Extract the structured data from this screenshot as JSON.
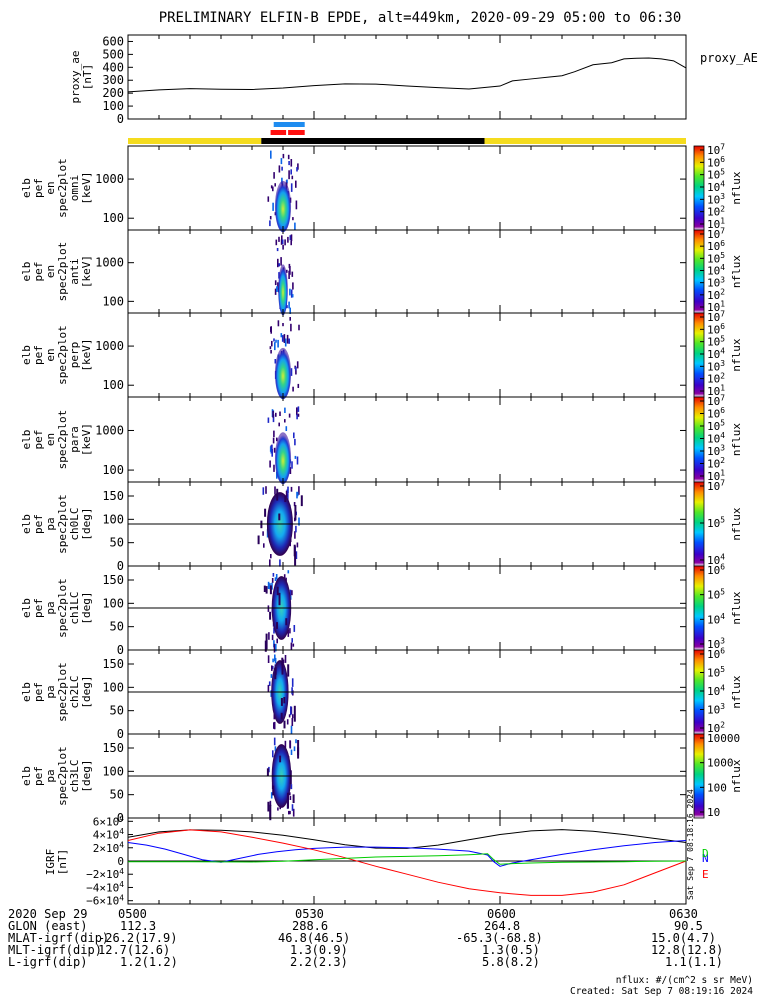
{
  "title": "PRELIMINARY ELFIN-B EPDE, alt=449km, 2020-09-29 05:00 to 06:30",
  "chart_data": [
    {
      "type": "line",
      "panel": "proxy_ae",
      "ylabel": [
        "proxy_ae",
        "[nT]"
      ],
      "legend": "proxy_AE",
      "yticks": [
        "0",
        "100",
        "200",
        "300",
        "400",
        "500",
        "600"
      ],
      "ylim": [
        0,
        650
      ],
      "x_minutes": [
        0,
        5,
        10,
        15,
        20,
        25,
        30,
        35,
        40,
        45,
        50,
        55,
        60,
        62,
        65,
        68,
        70,
        72,
        75,
        78,
        80,
        82,
        84,
        86,
        88,
        90
      ],
      "values": [
        210,
        225,
        235,
        230,
        228,
        240,
        258,
        272,
        270,
        255,
        243,
        232,
        255,
        295,
        310,
        325,
        335,
        365,
        420,
        435,
        465,
        470,
        472,
        465,
        450,
        395
      ]
    },
    {
      "type": "heatmap",
      "panel": "omni",
      "ylabel": [
        "elb",
        "pef",
        "en",
        "spec2plot",
        "omni",
        "[keV]"
      ],
      "yticks": [
        "100",
        "1000"
      ],
      "ylog": true,
      "colorbar_ticks": [
        "10^7",
        "10^6",
        "10^5",
        "10^4",
        "10^3",
        "10^2",
        "10^1"
      ],
      "colorbar_label": "nflux",
      "x_active_minutes": [
        22.5,
        27.5
      ]
    },
    {
      "type": "heatmap",
      "panel": "anti",
      "ylabel": [
        "elb",
        "pef",
        "en",
        "spec2plot",
        "anti",
        "[keV]"
      ],
      "yticks": [
        "100",
        "1000"
      ],
      "ylog": true,
      "colorbar_ticks": [
        "10^7",
        "10^6",
        "10^5",
        "10^4",
        "10^3",
        "10^2",
        "10^1"
      ],
      "colorbar_label": "nflux",
      "x_active_minutes": [
        23.5,
        26.5
      ]
    },
    {
      "type": "heatmap",
      "panel": "perp",
      "ylabel": [
        "elb",
        "pef",
        "en",
        "spec2plot",
        "perp",
        "[keV]"
      ],
      "yticks": [
        "100",
        "1000"
      ],
      "ylog": true,
      "colorbar_ticks": [
        "10^7",
        "10^6",
        "10^5",
        "10^4",
        "10^3",
        "10^2",
        "10^1"
      ],
      "colorbar_label": "nflux",
      "x_active_minutes": [
        22.5,
        27.5
      ]
    },
    {
      "type": "heatmap",
      "panel": "para",
      "ylabel": [
        "elb",
        "pef",
        "en",
        "spec2plot",
        "para",
        "[keV]"
      ],
      "yticks": [
        "100",
        "1000"
      ],
      "ylog": true,
      "colorbar_ticks": [
        "10^7",
        "10^6",
        "10^5",
        "10^4",
        "10^3",
        "10^2",
        "10^1"
      ],
      "colorbar_label": "nflux",
      "x_active_minutes": [
        22.5,
        27.5
      ]
    },
    {
      "type": "heatmap",
      "panel": "ch0LC",
      "ylabel": [
        "elb",
        "pef",
        "pa",
        "spec2plot",
        "ch0LC",
        "[deg]"
      ],
      "yticks": [
        "0",
        "50",
        "100",
        "150"
      ],
      "ylim": [
        0,
        180
      ],
      "hline": 90,
      "colorbar_ticks": [
        "10^7",
        "10^5",
        "10^4"
      ],
      "colorbar_label": "nflux",
      "x_active_minutes": [
        21.5,
        27.5
      ]
    },
    {
      "type": "heatmap",
      "panel": "ch1LC",
      "ylabel": [
        "elb",
        "pef",
        "pa",
        "spec2plot",
        "ch1LC",
        "[deg]"
      ],
      "yticks": [
        "0",
        "50",
        "100",
        "150"
      ],
      "ylim": [
        0,
        180
      ],
      "hline": 90,
      "colorbar_ticks": [
        "10^6",
        "10^5",
        "10^4",
        "10^3"
      ],
      "colorbar_label": "nflux",
      "x_active_minutes": [
        22.5,
        27.0
      ]
    },
    {
      "type": "heatmap",
      "panel": "ch2LC",
      "ylabel": [
        "elb",
        "pef",
        "pa",
        "spec2plot",
        "ch2LC",
        "[deg]"
      ],
      "yticks": [
        "0",
        "50",
        "100",
        "150"
      ],
      "ylim": [
        0,
        180
      ],
      "hline": 90,
      "colorbar_ticks": [
        "10^6",
        "10^5",
        "10^4",
        "10^3",
        "10^2"
      ],
      "colorbar_label": "nflux",
      "x_active_minutes": [
        22.5,
        26.5
      ]
    },
    {
      "type": "heatmap",
      "panel": "ch3LC",
      "ylabel": [
        "elb",
        "pef",
        "pa",
        "spec2plot",
        "ch3LC",
        "[deg]"
      ],
      "yticks": [
        "0",
        "50",
        "100",
        "150"
      ],
      "ylim": [
        0,
        180
      ],
      "hline": 90,
      "colorbar_ticks": [
        "10000",
        "1000",
        "100",
        "10"
      ],
      "colorbar_label": "nflux",
      "x_active_minutes": [
        22.5,
        27.0
      ]
    },
    {
      "type": "line",
      "panel": "GRF",
      "ylabel": [
        "IGRF",
        "[nT]"
      ],
      "yticks": [
        "6×10^4",
        "4×10^4",
        "2×10^4",
        "0",
        "−2×10^4",
        "−4×10^4",
        "−6×10^4"
      ],
      "ylim": [
        -65000,
        65000
      ],
      "legend": [
        {
          "name": "N",
          "color": "#0000ff"
        },
        {
          "name": "E",
          "color": "#ff0000"
        },
        {
          "name": "D",
          "color": "#00cc00"
        }
      ],
      "series": [
        {
          "name": "total",
          "color": "#000000",
          "x_minutes": [
            0,
            5,
            10,
            15,
            20,
            25,
            30,
            35,
            40,
            45,
            50,
            55,
            60,
            65,
            70,
            75,
            80,
            85,
            90
          ],
          "values": [
            36000,
            44000,
            47000,
            46500,
            44000,
            39000,
            32000,
            24500,
            19500,
            19000,
            24000,
            32000,
            40000,
            45500,
            47500,
            45000,
            40000,
            34000,
            28000
          ]
        },
        {
          "name": "N",
          "color": "#0000ff",
          "x_minutes": [
            0,
            3,
            6,
            9,
            12,
            15,
            18,
            21,
            24,
            27,
            30,
            35,
            40,
            45,
            50,
            55,
            58,
            59,
            60,
            62,
            65,
            70,
            75,
            80,
            85,
            90
          ],
          "values": [
            28000,
            24000,
            18000,
            10000,
            2000,
            -2000,
            4000,
            10000,
            14000,
            17000,
            19000,
            21000,
            21000,
            20000,
            18000,
            15000,
            9000,
            -1000,
            -8000,
            -3000,
            2000,
            10000,
            17000,
            23000,
            28000,
            31000
          ]
        },
        {
          "name": "E",
          "color": "#ff0000",
          "x_minutes": [
            0,
            5,
            10,
            15,
            20,
            25,
            30,
            35,
            40,
            45,
            50,
            55,
            60,
            65,
            70,
            75,
            80,
            85,
            90
          ],
          "values": [
            31000,
            42000,
            47000,
            44000,
            36000,
            27000,
            17000,
            5000,
            -8000,
            -20000,
            -32000,
            -42000,
            -48000,
            -52000,
            -52000,
            -47000,
            -36000,
            -18000,
            0
          ]
        },
        {
          "name": "D",
          "color": "#00cc00",
          "x_minutes": [
            0,
            10,
            20,
            25,
            30,
            35,
            40,
            45,
            50,
            55,
            58,
            59,
            60,
            62,
            65,
            70,
            75,
            80,
            85,
            90
          ],
          "values": [
            -1000,
            -1000,
            -1500,
            -500,
            2000,
            4000,
            6000,
            7000,
            8000,
            9500,
            11000,
            2000,
            -5000,
            -4000,
            -3000,
            -2000,
            -1500,
            -1000,
            -500,
            0
          ]
        }
      ]
    }
  ],
  "x_axis": {
    "range_minutes": [
      0,
      90
    ],
    "ticks_minutes": [
      0,
      30,
      60,
      90
    ]
  },
  "bars": {
    "science_blue": [
      [
        23.5,
        28.5
      ]
    ],
    "science_red": [
      [
        23.0,
        28.5
      ]
    ],
    "zone_yellow": [
      [
        0,
        21.5
      ],
      [
        57.5,
        90
      ]
    ],
    "zone_black": [
      [
        21.5,
        57.5
      ]
    ]
  },
  "time_axis_rows": [
    {
      "label": "2020 Sep 29",
      "values": [
        "0500",
        "0530",
        "0600",
        "0630"
      ]
    },
    {
      "label": "GLON (east)",
      "values": [
        "112.3",
        "288.6",
        "264.8",
        "90.5"
      ]
    },
    {
      "label": "MLAT-igrf(dip)",
      "values": [
        "-26.2(17.9)",
        "46.8(46.5)",
        "-65.3(-68.8)",
        "15.0(4.7)"
      ]
    },
    {
      "label": "MLT-igrf(dip)",
      "values": [
        "12.7(12.6)",
        "1.3(0.9)",
        "1.3(0.5)",
        "12.8(12.8)"
      ]
    },
    {
      "label": "L-igrf(dip)",
      "values": [
        "1.2(1.2)",
        "2.2(2.3)",
        "5.8(8.2)",
        "1.1(1.1)"
      ]
    }
  ],
  "footnote": {
    "units": "nflux: #/(cm^2 s sr MeV)",
    "created": "Created: Sat Sep  7 08:19:16 2024"
  },
  "side_stamp": "Sat Sep  7 08:18:16 2024",
  "colors": {
    "zone_yellow": "#f5dc1e",
    "science_blue": "#1e8cf0",
    "science_red": "#ff1010"
  }
}
